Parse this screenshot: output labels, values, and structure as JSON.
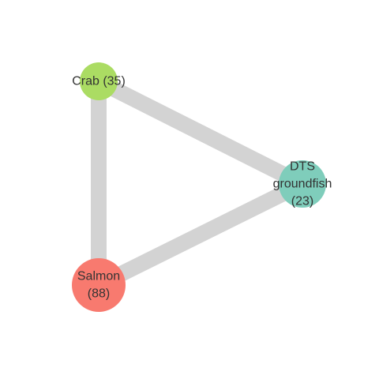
{
  "diagram": {
    "type": "network",
    "edge_color": "#d3d3d3",
    "nodes": [
      {
        "id": "crab",
        "label_lines": [
          "Crab (35)"
        ],
        "value": 35,
        "color": "#abdc63"
      },
      {
        "id": "dts",
        "label_lines": [
          "DTS",
          "groundfish",
          "(23)"
        ],
        "value": 23,
        "color": "#7fcdbb"
      },
      {
        "id": "salmon",
        "label_lines": [
          "Salmon",
          "(88)"
        ],
        "value": 88,
        "color": "#f87a6f"
      }
    ],
    "edges": [
      {
        "source": "crab",
        "target": "dts"
      },
      {
        "source": "crab",
        "target": "salmon"
      },
      {
        "source": "salmon",
        "target": "dts"
      }
    ]
  }
}
